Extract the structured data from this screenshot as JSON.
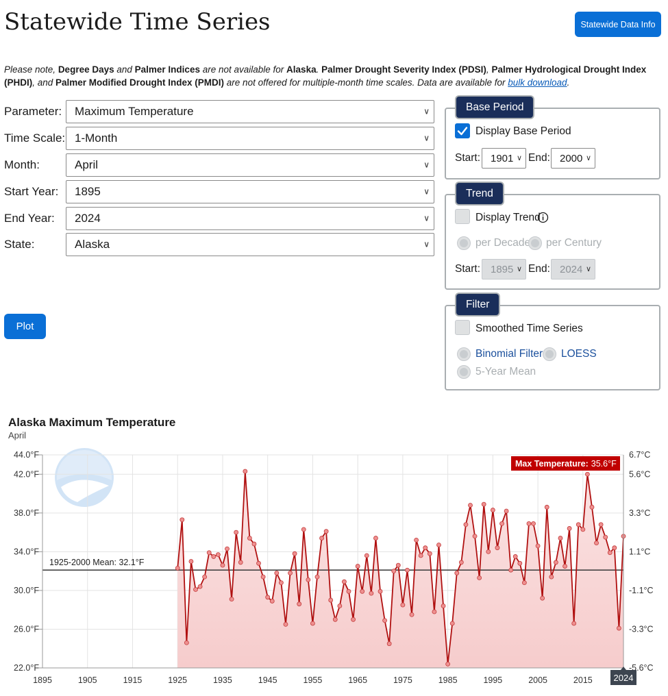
{
  "page": {
    "title": "Statewide Time Series",
    "info_button": "Statewide Data Info",
    "note": {
      "p1": "Please note, ",
      "b1": "Degree Days",
      "p2": " and ",
      "b2": "Palmer Indices",
      "p3": " are not available for ",
      "b3": "Alaska",
      "p4": ". ",
      "b4": "Palmer Drought Severity Index (PDSI)",
      "p5": ", ",
      "b5": "Palmer Hydrological Drought Index (PHDI)",
      "p6": ", and ",
      "b6": "Palmer Modified Drought Index (PMDI)",
      "p7": " are not offered for multiple-month time scales. Data are available for ",
      "link": "bulk download",
      "p8": "."
    }
  },
  "form": {
    "parameter": {
      "label": "Parameter:",
      "value": "Maximum Temperature"
    },
    "time_scale": {
      "label": "Time Scale:",
      "value": "1-Month"
    },
    "month": {
      "label": "Month:",
      "value": "April"
    },
    "start_year": {
      "label": "Start Year:",
      "value": "1895"
    },
    "end_year": {
      "label": "End Year:",
      "value": "2024"
    },
    "state": {
      "label": "State:",
      "value": "Alaska"
    },
    "plot_button": "Plot"
  },
  "base_period": {
    "tab": "Base Period",
    "checkbox_label": "Display Base Period",
    "checked": true,
    "start_label": "Start:",
    "start_value": "1901",
    "end_label": "End:",
    "end_value": "2000"
  },
  "trend": {
    "tab": "Trend",
    "checkbox_label": "Display Trend",
    "checked": false,
    "per_decade": "per Decade",
    "per_century": "per Century",
    "start_label": "Start:",
    "start_value": "1895",
    "end_label": "End:",
    "end_value": "2024"
  },
  "filter": {
    "tab": "Filter",
    "checkbox_label": "Smoothed Time Series",
    "checked": false,
    "binomial": "Binomial Filter",
    "loess": "LOESS",
    "five_year": "5-Year Mean"
  },
  "colors": {
    "accent": "#0a6fd6",
    "tab_bg": "#1a2e5a",
    "series_line": "#b01010",
    "area_fill": "#f6cccc",
    "tooltip_bg": "#c00000"
  },
  "chart_data": {
    "type": "area",
    "title": "Alaska Maximum Temperature",
    "subtitle": "April",
    "xlim": [
      1895,
      2024
    ],
    "ylim": [
      22,
      44
    ],
    "x_ticks": [
      "1895",
      "1905",
      "1915",
      "1925",
      "1935",
      "1945",
      "1955",
      "1965",
      "1975",
      "1985",
      "1995",
      "2005",
      "2015"
    ],
    "y_ticks_f": [
      "44.0°F",
      "42.0°F",
      "38.0°F",
      "34.0°F",
      "30.0°F",
      "26.0°F",
      "22.0°F"
    ],
    "y_ticks_c": [
      "6.7°C",
      "5.6°C",
      "3.3°C",
      "1.1°C",
      "-1.1°C",
      "-3.3°C",
      "-5.6°C"
    ],
    "mean_label": "1925-2000 Mean: 32.1°F",
    "mean_value": 32.1,
    "tooltip_label": "Max Temperature:",
    "tooltip_value": "35.6°F",
    "x_highlight": "2024",
    "grid": true,
    "legend": "none",
    "series": [
      {
        "x_start": 1925,
        "values": [
          32.3,
          37.3,
          24.6,
          33.0,
          30.1,
          30.4,
          31.4,
          33.9,
          33.5,
          33.7,
          32.6,
          34.3,
          29.1,
          36.0,
          32.9,
          42.3,
          35.4,
          34.8,
          32.8,
          31.4,
          29.3,
          28.9,
          31.8,
          30.8,
          26.5,
          31.8,
          33.8,
          28.6,
          36.3,
          31.1,
          26.6,
          31.4,
          35.4,
          36.1,
          29.0,
          27.0,
          28.4,
          30.9,
          29.9,
          27.0,
          32.5,
          29.9,
          33.6,
          29.7,
          35.4,
          29.9,
          26.9,
          24.5,
          32.0,
          32.6,
          28.5,
          32.1,
          27.5,
          35.2,
          33.6,
          34.4,
          33.8,
          27.8,
          34.7,
          28.4,
          22.4,
          26.6,
          31.8,
          32.9,
          36.8,
          38.8,
          35.6,
          31.3,
          38.9,
          34.0,
          38.3,
          34.4,
          36.9,
          38.2,
          32.1,
          33.5,
          32.8,
          30.8,
          36.9,
          36.9,
          34.6,
          29.2,
          38.6,
          31.4,
          32.9,
          35.4,
          32.5,
          36.4,
          26.6,
          36.8,
          36.3,
          42.0,
          38.6,
          34.9,
          36.8,
          35.5,
          33.9,
          34.4,
          26.1,
          35.6
        ]
      }
    ]
  }
}
